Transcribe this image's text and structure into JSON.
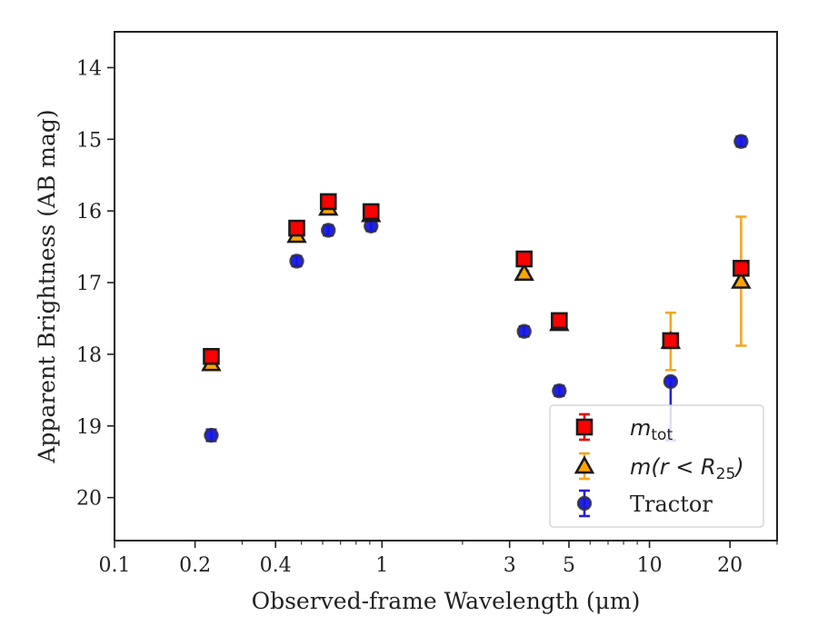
{
  "chart_data": {
    "type": "scatter",
    "xlabel": "Observed-frame Wavelength (μm)",
    "ylabel": "Apparent Brightness (AB mag)",
    "x_scale": "log",
    "y_inverted": true,
    "xlim": [
      0.1,
      30
    ],
    "ylim": [
      20.6,
      13.5
    ],
    "x_ticks": [
      {
        "value": 0.1,
        "label": "0.1"
      },
      {
        "value": 0.2,
        "label": "0.2"
      },
      {
        "value": 0.4,
        "label": "0.4"
      },
      {
        "value": 1,
        "label": "1"
      },
      {
        "value": 3,
        "label": "3"
      },
      {
        "value": 5,
        "label": "5"
      },
      {
        "value": 10,
        "label": "10"
      },
      {
        "value": 20,
        "label": "20"
      }
    ],
    "y_ticks": [
      {
        "value": 14,
        "label": "14"
      },
      {
        "value": 15,
        "label": "15"
      },
      {
        "value": 16,
        "label": "16"
      },
      {
        "value": 17,
        "label": "17"
      },
      {
        "value": 18,
        "label": "18"
      },
      {
        "value": 19,
        "label": "19"
      },
      {
        "value": 20,
        "label": "20"
      }
    ],
    "legend": {
      "placement": "lower-right"
    },
    "series": [
      {
        "name": "m_tot",
        "marker": "square",
        "color": "#ff0000",
        "edge_color": "#1a1a1a",
        "errorbar_color": "#e60000",
        "points": [
          {
            "x": 0.23,
            "y": 18.03,
            "err": 0.05
          },
          {
            "x": 0.48,
            "y": 16.24,
            "err": 0.04
          },
          {
            "x": 0.63,
            "y": 15.87,
            "err": 0.04
          },
          {
            "x": 0.91,
            "y": 16.01,
            "err": 0.04
          },
          {
            "x": 3.4,
            "y": 16.67,
            "err": 0.04
          },
          {
            "x": 4.6,
            "y": 17.53,
            "err": 0.04
          },
          {
            "x": 12.0,
            "y": 17.81,
            "err": 0.05
          },
          {
            "x": 22.0,
            "y": 16.8,
            "err": 0.05
          }
        ]
      },
      {
        "name": "m(r < R25)",
        "marker": "triangle",
        "color": "#ffa500",
        "edge_color": "#1a1a1a",
        "errorbar_color": "#f5a623",
        "points": [
          {
            "x": 0.23,
            "y": 18.13,
            "err": 0.04
          },
          {
            "x": 0.48,
            "y": 16.34,
            "err": 0.04
          },
          {
            "x": 0.63,
            "y": 15.96,
            "err": 0.04
          },
          {
            "x": 0.91,
            "y": 16.05,
            "err": 0.04
          },
          {
            "x": 3.4,
            "y": 16.87,
            "err": 0.04
          },
          {
            "x": 4.6,
            "y": 17.57,
            "err": 0.04
          },
          {
            "x": 12.0,
            "y": 17.82,
            "err": 0.4
          },
          {
            "x": 22.0,
            "y": 16.98,
            "err": 0.9
          }
        ]
      },
      {
        "name": "Tractor",
        "marker": "circle",
        "color": "#1515e6",
        "edge_color": "#333333",
        "errorbar_color": "#2323d0",
        "points": [
          {
            "x": 0.23,
            "y": 19.13,
            "err": 0.08
          },
          {
            "x": 0.48,
            "y": 16.7,
            "err": 0.07
          },
          {
            "x": 0.63,
            "y": 16.27,
            "err": 0.07
          },
          {
            "x": 0.91,
            "y": 16.21,
            "err": 0.07
          },
          {
            "x": 3.4,
            "y": 17.68,
            "err": 0.07
          },
          {
            "x": 4.6,
            "y": 18.51,
            "err": 0.07
          },
          {
            "x": 12.0,
            "y": 18.38,
            "err_upper": 0.05,
            "err_lower": 0.82
          },
          {
            "x": 22.0,
            "y": 15.03,
            "err": 0.07
          }
        ]
      }
    ]
  }
}
